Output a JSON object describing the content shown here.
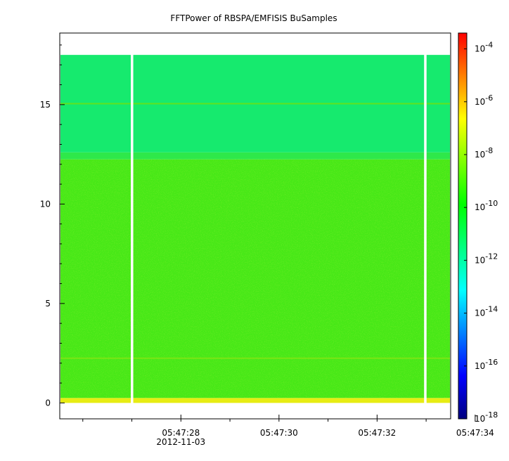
{
  "chart_data": {
    "type": "heatmap",
    "title": "FFTPower of RBSPA/EMFISIS  BuSamples",
    "xlabel": "",
    "ylabel": "",
    "x_ticks": [
      {
        "label": "05:47:28",
        "sublabel": "2012-11-03",
        "t": 28
      },
      {
        "label": "05:47:30",
        "t": 30
      },
      {
        "label": "05:47:32",
        "t": 32
      },
      {
        "label": "05:47:34",
        "t": 34
      }
    ],
    "xlim_seconds": [
      25.53,
      33.5
    ],
    "ylim": [
      -0.8,
      18.6
    ],
    "y_ticks": [
      0,
      5,
      10,
      15
    ],
    "y_data_top": 17.5,
    "gaps_seconds": [
      27.0,
      32.98
    ],
    "bands": [
      {
        "from": 0,
        "to": 0.25,
        "color": "#e7ec13",
        "level": -8.5
      },
      {
        "from": 0.25,
        "to": 12.25,
        "color": "#47e817",
        "level": -10.2
      },
      {
        "from": 12.25,
        "to": 12.6,
        "color": "#2ee84a",
        "level": -10.8
      },
      {
        "from": 12.6,
        "to": 17.5,
        "color": "#16ea6e",
        "level": -11.4
      }
    ],
    "colorbar": {
      "scale": "log",
      "range": [
        -18,
        -3.4
      ],
      "ticks": [
        -4,
        -6,
        -8,
        -10,
        -12,
        -14,
        -16,
        -18
      ],
      "tick_labels": [
        "10",
        "10",
        "10",
        "10",
        "10",
        "10",
        "10",
        "10"
      ],
      "tick_exponents": [
        "-4",
        "-6",
        "-8",
        "-10",
        "-12",
        "-14",
        "-16",
        "-18"
      ],
      "colors": [
        "#00007f",
        "#0000ff",
        "#0080ff",
        "#00ffff",
        "#00ff80",
        "#00ff00",
        "#80ff00",
        "#ffff00",
        "#ff8000",
        "#ff0000"
      ]
    }
  }
}
